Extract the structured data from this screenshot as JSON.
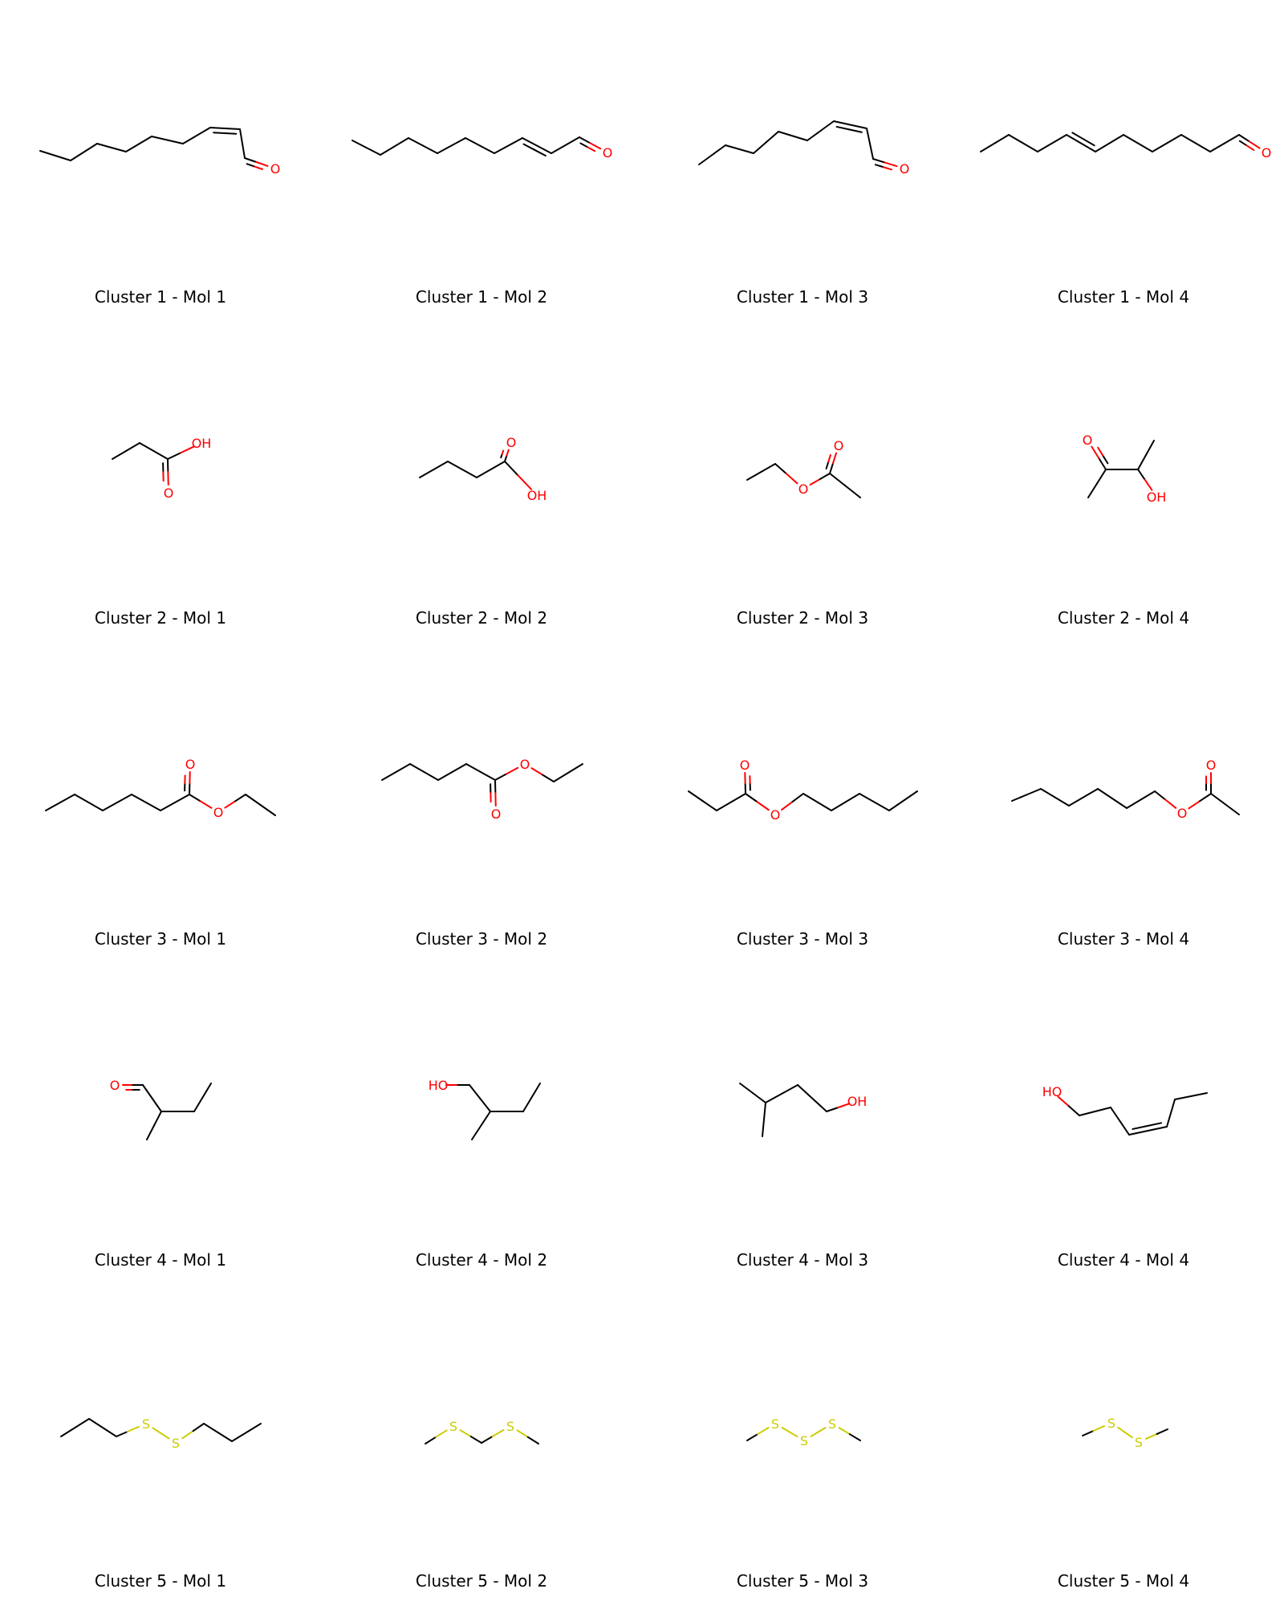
{
  "colors": {
    "bond": "#000000",
    "O": "#ff0000",
    "S": "#cccc00"
  },
  "molecules": [
    {
      "label": "Cluster 1 - Mol 1",
      "atoms": [
        [
          50,
          188,
          "C"
        ],
        [
          88,
          200,
          "C"
        ],
        [
          121,
          179,
          "C"
        ],
        [
          157,
          189,
          "C"
        ],
        [
          189,
          170,
          "C"
        ],
        [
          228,
          179,
          "C"
        ],
        [
          262,
          159,
          "C"
        ],
        [
          299,
          161,
          "C"
        ],
        [
          305,
          197,
          "C"
        ],
        [
          343,
          210,
          "O"
        ]
      ],
      "bonds": [
        [
          0,
          1,
          1
        ],
        [
          1,
          2,
          1
        ],
        [
          2,
          3,
          1
        ],
        [
          3,
          4,
          1
        ],
        [
          4,
          5,
          1
        ],
        [
          5,
          6,
          1
        ],
        [
          6,
          7,
          2
        ],
        [
          7,
          8,
          1
        ],
        [
          8,
          9,
          2
        ]
      ]
    },
    {
      "label": "Cluster 1 - Mol 2",
      "atoms": [
        [
          439,
          175,
          "C"
        ],
        [
          474,
          193,
          "C"
        ],
        [
          509,
          172,
          "C"
        ],
        [
          545,
          191,
          "C"
        ],
        [
          580,
          172,
          "C"
        ],
        [
          616,
          191,
          "C"
        ],
        [
          651,
          172,
          "C"
        ],
        [
          687,
          191,
          "C"
        ],
        [
          722,
          171,
          "C"
        ],
        [
          757,
          190,
          "O"
        ]
      ],
      "bonds": [
        [
          0,
          1,
          1
        ],
        [
          1,
          2,
          1
        ],
        [
          2,
          3,
          1
        ],
        [
          3,
          4,
          1
        ],
        [
          4,
          5,
          1
        ],
        [
          5,
          6,
          1
        ],
        [
          6,
          7,
          2
        ],
        [
          7,
          8,
          1
        ],
        [
          8,
          9,
          2
        ]
      ]
    },
    {
      "label": "Cluster 1 - Mol 3",
      "atoms": [
        [
          871,
          205,
          "C"
        ],
        [
          904,
          181,
          "C"
        ],
        [
          939,
          191,
          "C"
        ],
        [
          970,
          164,
          "C"
        ],
        [
          1006,
          175,
          "C"
        ],
        [
          1039,
          151,
          "C"
        ],
        [
          1080,
          160,
          "C"
        ],
        [
          1088,
          198,
          "C"
        ],
        [
          1127,
          210,
          "O"
        ]
      ],
      "bonds": [
        [
          0,
          1,
          1
        ],
        [
          1,
          2,
          1
        ],
        [
          2,
          3,
          1
        ],
        [
          3,
          4,
          1
        ],
        [
          4,
          5,
          1
        ],
        [
          5,
          6,
          2
        ],
        [
          6,
          7,
          1
        ],
        [
          7,
          8,
          2
        ]
      ]
    },
    {
      "label": "Cluster 1 - Mol 4",
      "atoms": [
        [
          1222,
          189,
          "C"
        ],
        [
          1257,
          168,
          "C"
        ],
        [
          1293,
          189,
          "C"
        ],
        [
          1329,
          168,
          "C"
        ],
        [
          1365,
          189,
          "C"
        ],
        [
          1400,
          168,
          "C"
        ],
        [
          1436,
          189,
          "C"
        ],
        [
          1472,
          168,
          "C"
        ],
        [
          1508,
          189,
          "C"
        ],
        [
          1544,
          168,
          "C"
        ],
        [
          1578,
          190,
          "O"
        ]
      ],
      "bonds": [
        [
          0,
          1,
          1
        ],
        [
          1,
          2,
          1
        ],
        [
          2,
          3,
          1
        ],
        [
          3,
          4,
          2
        ],
        [
          4,
          5,
          1
        ],
        [
          5,
          6,
          1
        ],
        [
          6,
          7,
          1
        ],
        [
          7,
          8,
          1
        ],
        [
          8,
          9,
          1
        ],
        [
          9,
          10,
          2
        ]
      ]
    },
    {
      "label": "Cluster 2 - Mol 1",
      "atoms": [
        [
          140,
          572,
          "C"
        ],
        [
          174,
          552,
          "C"
        ],
        [
          209,
          572,
          "C"
        ],
        [
          210,
          614,
          "O"
        ],
        [
          251,
          552,
          "OH"
        ]
      ],
      "bonds": [
        [
          0,
          1,
          1
        ],
        [
          1,
          2,
          1
        ],
        [
          2,
          3,
          2
        ],
        [
          2,
          4,
          1
        ]
      ]
    },
    {
      "label": "Cluster 2 - Mol 2",
      "atoms": [
        [
          523,
          595,
          "C"
        ],
        [
          558,
          575,
          "C"
        ],
        [
          594,
          595,
          "C"
        ],
        [
          629,
          575,
          "C"
        ],
        [
          637,
          551,
          "O"
        ],
        [
          669,
          617,
          "OH"
        ]
      ],
      "bonds": [
        [
          0,
          1,
          1
        ],
        [
          1,
          2,
          1
        ],
        [
          2,
          3,
          1
        ],
        [
          3,
          4,
          2
        ],
        [
          3,
          5,
          1
        ]
      ]
    },
    {
      "label": "Cluster 2 - Mol 3",
      "atoms": [
        [
          931,
          598,
          "C"
        ],
        [
          966,
          578,
          "C"
        ],
        [
          1001,
          609,
          "O"
        ],
        [
          1034,
          590,
          "C"
        ],
        [
          1045,
          555,
          "O"
        ],
        [
          1072,
          620,
          "C"
        ]
      ],
      "bonds": [
        [
          0,
          1,
          1
        ],
        [
          1,
          2,
          1
        ],
        [
          2,
          3,
          1
        ],
        [
          3,
          4,
          2
        ],
        [
          3,
          5,
          1
        ]
      ]
    },
    {
      "label": "Cluster 2 - Mol 4",
      "atoms": [
        [
          1356,
          620,
          "C"
        ],
        [
          1378,
          585,
          "C"
        ],
        [
          1355,
          548,
          "O"
        ],
        [
          1418,
          585,
          "C"
        ],
        [
          1438,
          549,
          "C"
        ],
        [
          1441,
          619,
          "OH"
        ]
      ],
      "bonds": [
        [
          0,
          1,
          1
        ],
        [
          1,
          2,
          2
        ],
        [
          1,
          3,
          1
        ],
        [
          3,
          4,
          1
        ],
        [
          3,
          5,
          1
        ]
      ]
    },
    {
      "label": "Cluster 3 - Mol 1",
      "atoms": [
        [
          57,
          1010,
          "C"
        ],
        [
          93,
          990,
          "C"
        ],
        [
          128,
          1010,
          "C"
        ],
        [
          164,
          990,
          "C"
        ],
        [
          200,
          1010,
          "C"
        ],
        [
          236,
          990,
          "C"
        ],
        [
          237,
          952,
          "O"
        ],
        [
          272,
          1012,
          "O"
        ],
        [
          306,
          990,
          "C"
        ],
        [
          343,
          1016,
          "C"
        ]
      ],
      "bonds": [
        [
          0,
          1,
          1
        ],
        [
          1,
          2,
          1
        ],
        [
          2,
          3,
          1
        ],
        [
          3,
          4,
          1
        ],
        [
          4,
          5,
          1
        ],
        [
          5,
          6,
          2
        ],
        [
          5,
          7,
          1
        ],
        [
          7,
          8,
          1
        ],
        [
          8,
          9,
          1
        ]
      ]
    },
    {
      "label": "Cluster 3 - Mol 2",
      "atoms": [
        [
          476,
          972,
          "C"
        ],
        [
          511,
          952,
          "C"
        ],
        [
          546,
          972,
          "C"
        ],
        [
          581,
          952,
          "C"
        ],
        [
          617,
          972,
          "C"
        ],
        [
          618,
          1014,
          "O"
        ],
        [
          654,
          952,
          "O"
        ],
        [
          690,
          974,
          "C"
        ],
        [
          726,
          952,
          "C"
        ]
      ],
      "bonds": [
        [
          0,
          1,
          1
        ],
        [
          1,
          2,
          1
        ],
        [
          2,
          3,
          1
        ],
        [
          3,
          4,
          1
        ],
        [
          4,
          5,
          2
        ],
        [
          4,
          6,
          1
        ],
        [
          6,
          7,
          1
        ],
        [
          7,
          8,
          1
        ]
      ]
    },
    {
      "label": "Cluster 3 - Mol 3",
      "atoms": [
        [
          858,
          986,
          "C"
        ],
        [
          893,
          1010,
          "C"
        ],
        [
          929,
          989,
          "C"
        ],
        [
          928,
          953,
          "O"
        ],
        [
          966,
          1015,
          "O"
        ],
        [
          1001,
          989,
          "C"
        ],
        [
          1036,
          1010,
          "C"
        ],
        [
          1071,
          989,
          "C"
        ],
        [
          1108,
          1010,
          "C"
        ],
        [
          1143,
          986,
          "C"
        ]
      ],
      "bonds": [
        [
          0,
          1,
          1
        ],
        [
          1,
          2,
          1
        ],
        [
          2,
          3,
          2
        ],
        [
          2,
          4,
          1
        ],
        [
          4,
          5,
          1
        ],
        [
          5,
          6,
          1
        ],
        [
          6,
          7,
          1
        ],
        [
          7,
          8,
          1
        ],
        [
          8,
          9,
          1
        ]
      ]
    },
    {
      "label": "Cluster 3 - Mol 4",
      "atoms": [
        [
          1261,
          998,
          "C"
        ],
        [
          1297,
          983,
          "C"
        ],
        [
          1332,
          1004,
          "C"
        ],
        [
          1368,
          983,
          "C"
        ],
        [
          1404,
          1007,
          "C"
        ],
        [
          1439,
          986,
          "C"
        ],
        [
          1473,
          1013,
          "O"
        ],
        [
          1509,
          989,
          "C"
        ],
        [
          1509,
          953,
          "O"
        ],
        [
          1544,
          1015,
          "C"
        ]
      ],
      "bonds": [
        [
          0,
          1,
          1
        ],
        [
          1,
          2,
          1
        ],
        [
          2,
          3,
          1
        ],
        [
          3,
          4,
          1
        ],
        [
          4,
          5,
          1
        ],
        [
          5,
          6,
          1
        ],
        [
          6,
          7,
          1
        ],
        [
          7,
          8,
          2
        ],
        [
          7,
          9,
          1
        ]
      ]
    },
    {
      "label": "Cluster 4 - Mol 1",
      "atoms": [
        [
          143,
          1352,
          "O"
        ],
        [
          178,
          1352,
          "C"
        ],
        [
          201,
          1385,
          "C"
        ],
        [
          183,
          1420,
          "C"
        ],
        [
          242,
          1385,
          "C"
        ],
        [
          263,
          1350,
          "C"
        ]
      ],
      "bonds": [
        [
          0,
          1,
          2
        ],
        [
          1,
          2,
          1
        ],
        [
          2,
          3,
          1
        ],
        [
          2,
          4,
          1
        ],
        [
          4,
          5,
          1
        ]
      ]
    },
    {
      "label": "Cluster 4 - Mol 2",
      "atoms": [
        [
          546,
          1352,
          "HO"
        ],
        [
          585,
          1352,
          "C"
        ],
        [
          611,
          1385,
          "C"
        ],
        [
          588,
          1420,
          "C"
        ],
        [
          652,
          1385,
          "C"
        ],
        [
          673,
          1350,
          "C"
        ]
      ],
      "bonds": [
        [
          0,
          1,
          1
        ],
        [
          1,
          2,
          1
        ],
        [
          2,
          3,
          1
        ],
        [
          2,
          4,
          1
        ],
        [
          4,
          5,
          1
        ]
      ]
    },
    {
      "label": "Cluster 4 - Mol 3",
      "atoms": [
        [
          922,
          1350,
          "C"
        ],
        [
          954,
          1374,
          "C"
        ],
        [
          950,
          1416,
          "C"
        ],
        [
          994,
          1352,
          "C"
        ],
        [
          1030,
          1385,
          "C"
        ],
        [
          1068,
          1372,
          "OH"
        ]
      ],
      "bonds": [
        [
          0,
          1,
          1
        ],
        [
          1,
          2,
          1
        ],
        [
          1,
          3,
          1
        ],
        [
          3,
          4,
          1
        ],
        [
          4,
          5,
          1
        ]
      ]
    },
    {
      "label": "Cluster 4 - Mol 4",
      "atoms": [
        [
          1311,
          1360,
          "HO"
        ],
        [
          1345,
          1390,
          "C"
        ],
        [
          1384,
          1380,
          "C"
        ],
        [
          1407,
          1414,
          "C"
        ],
        [
          1454,
          1404,
          "C"
        ],
        [
          1464,
          1370,
          "C"
        ],
        [
          1504,
          1362,
          "C"
        ]
      ],
      "bonds": [
        [
          0,
          1,
          1
        ],
        [
          1,
          2,
          1
        ],
        [
          2,
          3,
          1
        ],
        [
          3,
          4,
          2
        ],
        [
          4,
          5,
          1
        ],
        [
          5,
          6,
          1
        ]
      ]
    },
    {
      "label": "Cluster 5 - Mol 1",
      "atoms": [
        [
          76,
          1790,
          "C"
        ],
        [
          111,
          1768,
          "C"
        ],
        [
          145,
          1790,
          "C"
        ],
        [
          182,
          1774,
          "S"
        ],
        [
          219,
          1798,
          "S"
        ],
        [
          254,
          1774,
          "C"
        ],
        [
          289,
          1796,
          "C"
        ],
        [
          325,
          1774,
          "C"
        ]
      ],
      "bonds": [
        [
          0,
          1,
          1
        ],
        [
          1,
          2,
          1
        ],
        [
          2,
          3,
          1
        ],
        [
          3,
          4,
          1
        ],
        [
          4,
          5,
          1
        ],
        [
          5,
          6,
          1
        ],
        [
          6,
          7,
          1
        ]
      ]
    },
    {
      "label": "Cluster 5 - Mol 2",
      "atoms": [
        [
          530,
          1799,
          "C"
        ],
        [
          565,
          1777,
          "S"
        ],
        [
          600,
          1798,
          "C"
        ],
        [
          636,
          1777,
          "S"
        ],
        [
          671,
          1799,
          "C"
        ]
      ],
      "bonds": [
        [
          0,
          1,
          1
        ],
        [
          1,
          2,
          1
        ],
        [
          2,
          3,
          1
        ],
        [
          3,
          4,
          1
        ]
      ]
    },
    {
      "label": "Cluster 5 - Mol 3",
      "atoms": [
        [
          931,
          1795,
          "C"
        ],
        [
          966,
          1774,
          "S"
        ],
        [
          1002,
          1795,
          "S"
        ],
        [
          1037,
          1774,
          "S"
        ],
        [
          1072,
          1795,
          "C"
        ]
      ],
      "bonds": [
        [
          0,
          1,
          1
        ],
        [
          1,
          2,
          1
        ],
        [
          2,
          3,
          1
        ],
        [
          3,
          4,
          1
        ]
      ]
    },
    {
      "label": "Cluster 5 - Mol 4",
      "atoms": [
        [
          1349,
          1789,
          "C"
        ],
        [
          1385,
          1773,
          "S"
        ],
        [
          1419,
          1797,
          "S"
        ],
        [
          1455,
          1781,
          "C"
        ]
      ],
      "bonds": [
        [
          0,
          1,
          1
        ],
        [
          1,
          2,
          1
        ],
        [
          2,
          3,
          1
        ]
      ]
    }
  ]
}
